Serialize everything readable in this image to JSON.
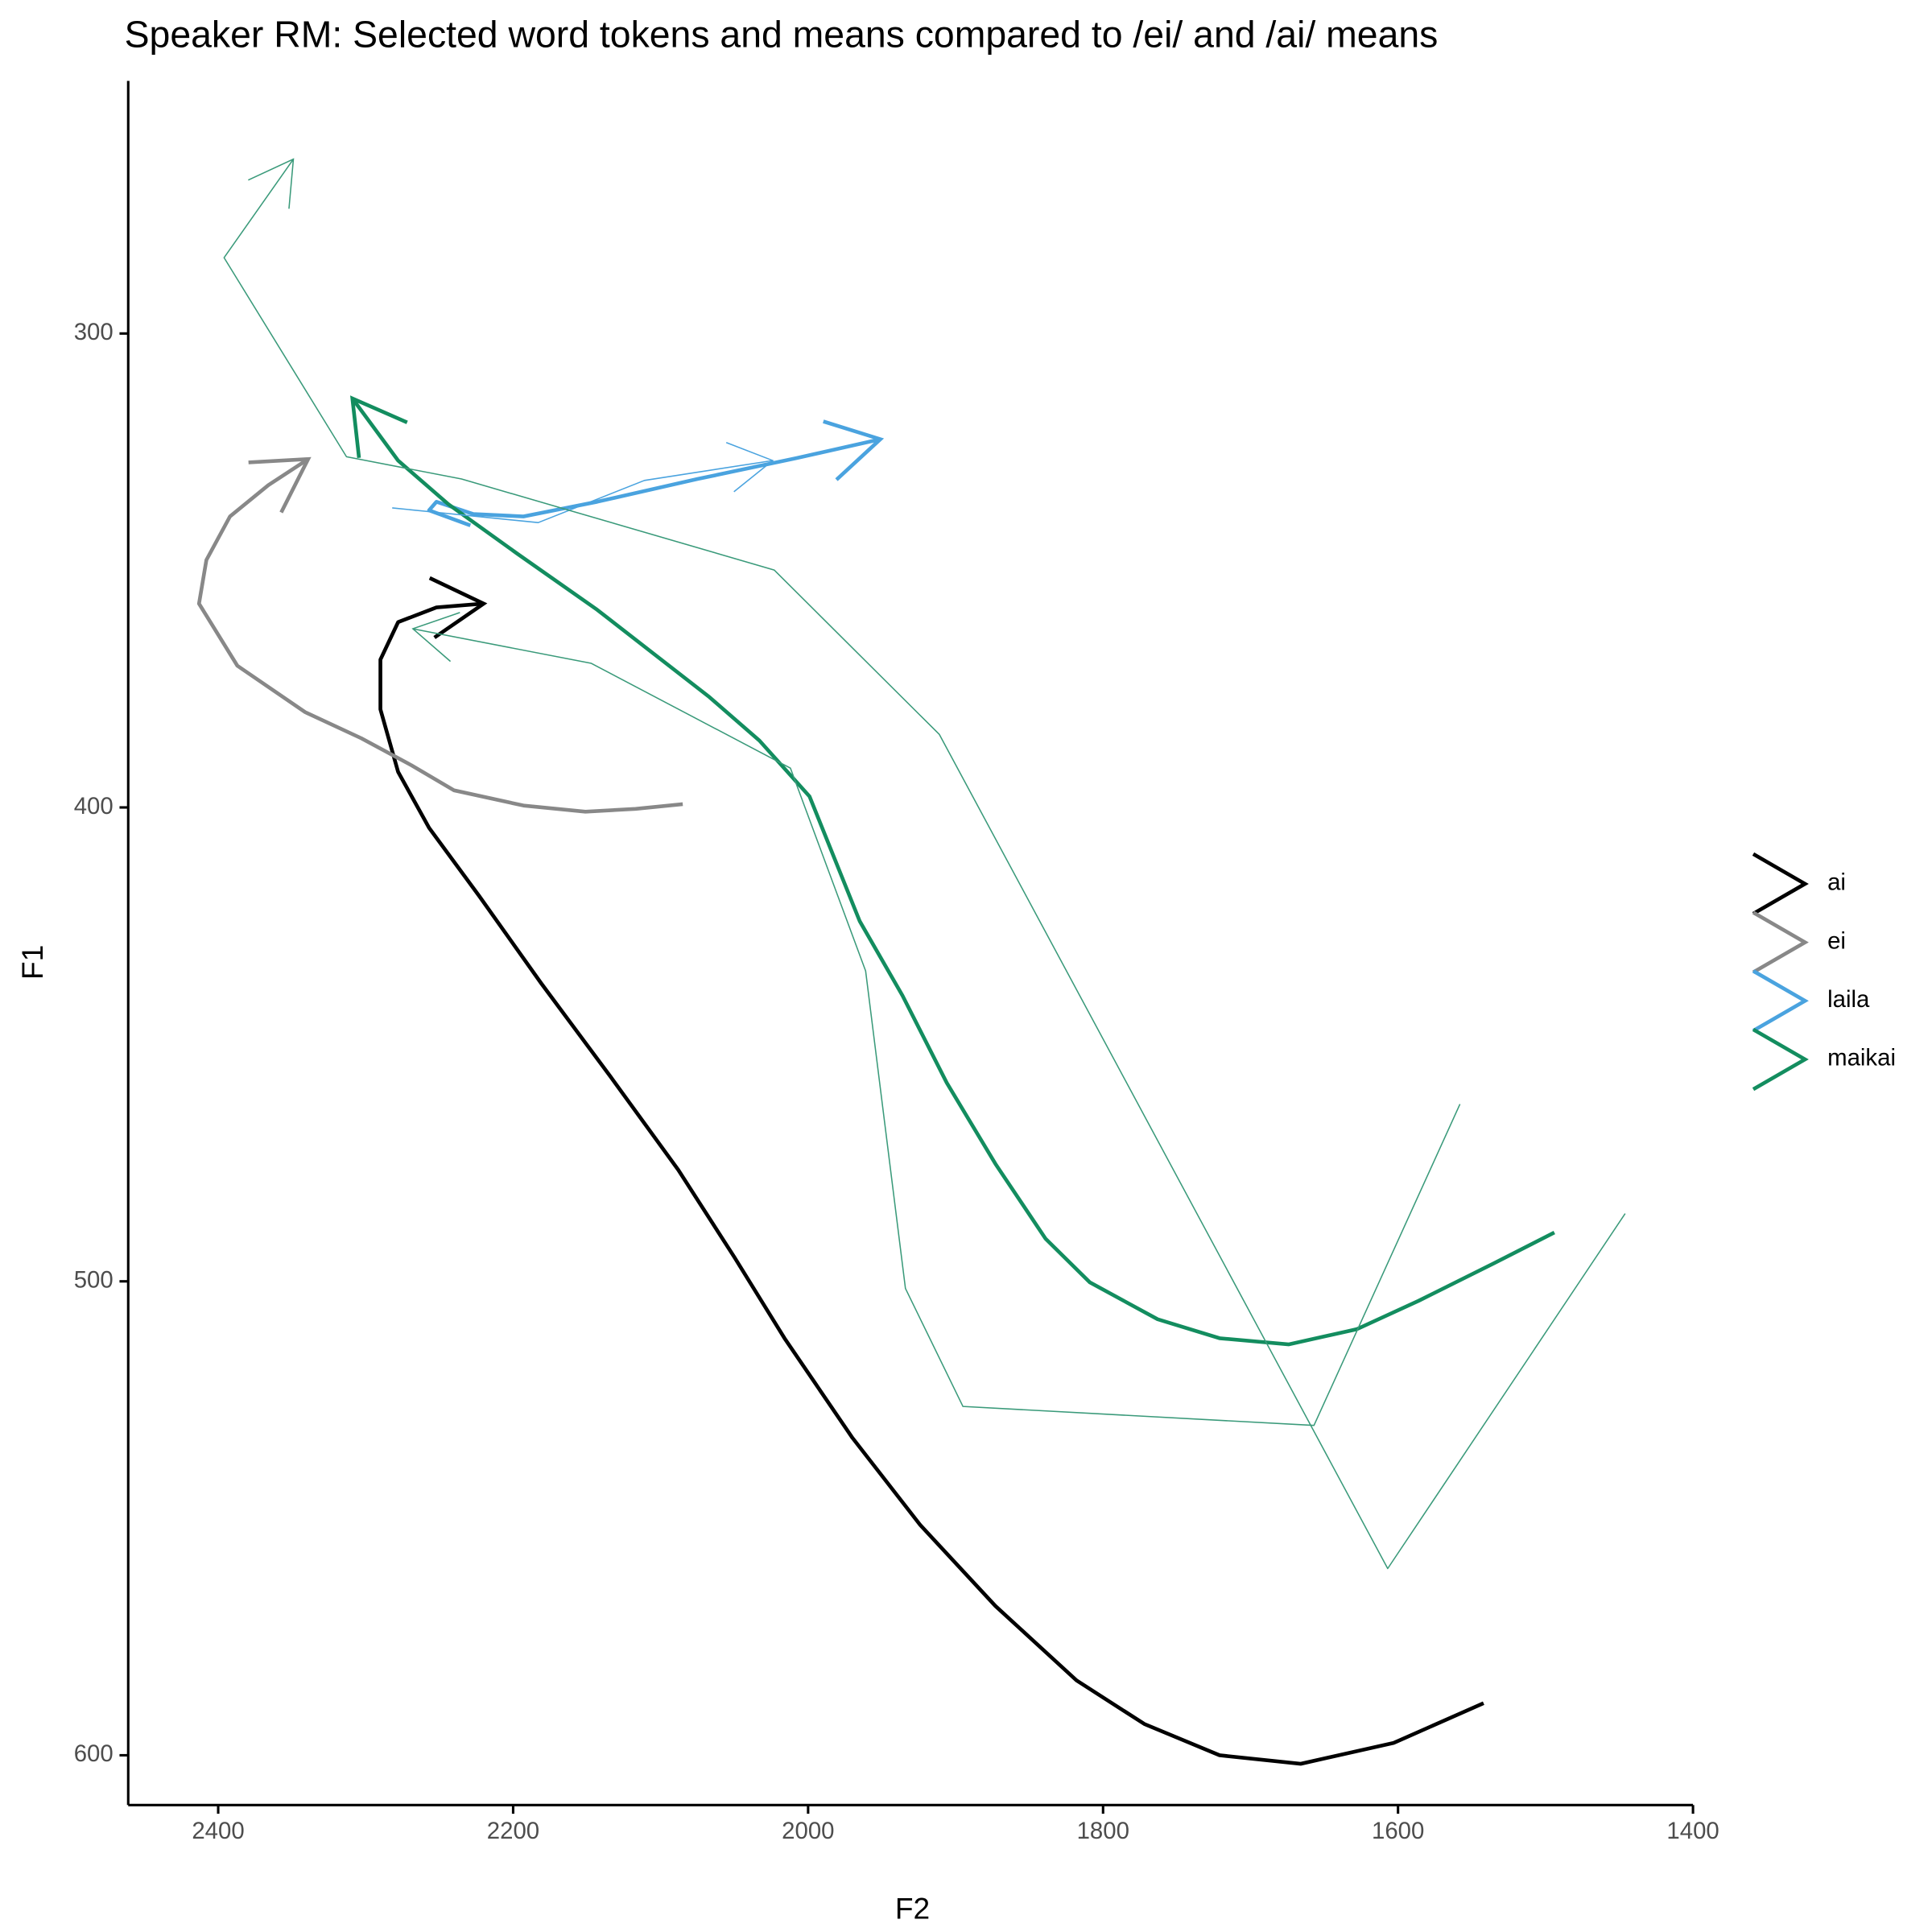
{
  "chart_data": {
    "type": "line",
    "title": "Speaker RM: Selected word tokens and means compared to /ei/ and /ai/ means",
    "x_label": "F2",
    "y_label": "F1",
    "xlim": [
      2461,
      1400
    ],
    "ylim": [
      610.5,
      246.7
    ],
    "xticks": [
      2400,
      2200,
      2000,
      1800,
      1600,
      1400
    ],
    "yticks": [
      300,
      400,
      500,
      600
    ],
    "series": [
      {
        "name": "ai",
        "color": "#000000",
        "linewidth": 3,
        "x": [
          1542,
          1603,
          1666,
          1721,
          1772,
          1818,
          1873,
          1924,
          1970,
          2016,
          2050,
          2088,
          2134,
          2181,
          2223,
          2257,
          2278,
          2290,
          2290,
          2278,
          2252,
          2220
        ],
        "values": [
          589,
          597.4,
          601.8,
          600,
          593.4,
          584.2,
          568.5,
          551.4,
          533,
          512,
          494.9,
          476.5,
          456.8,
          437.1,
          418.7,
          404.3,
          392.5,
          379.3,
          368.8,
          360.9,
          357.8,
          357
        ]
      },
      {
        "name": "ei",
        "color": "#888888",
        "linewidth": 3,
        "x": [
          2085,
          2117,
          2151,
          2193,
          2240,
          2269,
          2303,
          2341,
          2387,
          2413,
          2408,
          2392,
          2366,
          2339
        ],
        "values": [
          399.3,
          400.3,
          400.9,
          399.6,
          396.4,
          391.1,
          385.4,
          379.9,
          370.1,
          357,
          347.8,
          338.6,
          332,
          326.5
        ]
      },
      {
        "name": "laila",
        "color": "#4aa3df",
        "linewidth": 3,
        "x": [
          2229,
          2257,
          2252,
          2227,
          2193,
          2143,
          2075,
          2008,
          1951
        ],
        "values": [
          340.5,
          337.3,
          335.5,
          338.1,
          338.6,
          335.5,
          330.7,
          326.3,
          322.3
        ]
      },
      {
        "name": "maikai",
        "color": "#138d5f",
        "linewidth": 3,
        "x": [
          1494,
          1535,
          1586,
          1628,
          1674,
          1721,
          1763,
          1809,
          1839,
          1873,
          1906,
          1936,
          1965,
          1999,
          2033,
          2067,
          2105,
          2143,
          2197,
          2244,
          2278,
          2309
        ],
        "values": [
          489.7,
          496.2,
          504.1,
          510.1,
          513.3,
          512,
          508,
          500.2,
          491,
          475.2,
          458.1,
          439.7,
          424,
          397.7,
          385.9,
          376.7,
          367.5,
          358.3,
          346.5,
          336,
          326.8,
          313.7
        ]
      },
      {
        "name": "laila",
        "color": "#4aa3df",
        "linewidth": 1,
        "x": [
          2282,
          2183,
          2111,
          2024
        ],
        "values": [
          336.8,
          339.9,
          331,
          326.8
        ]
      },
      {
        "name": "maikai",
        "color": "#3a9a7a",
        "linewidth": 1,
        "x": [
          1446,
          1607,
          1911,
          2023,
          2235,
          2313,
          2396,
          2349
        ],
        "values": [
          485.7,
          560.6,
          384.6,
          349.9,
          330.7,
          326,
          284,
          263.2
        ]
      },
      {
        "name": "maikai",
        "color": "#3a9a7a",
        "linewidth": 1,
        "x": [
          1558,
          1657,
          1895,
          1934,
          1961,
          2012,
          2147,
          2268
        ],
        "values": [
          462.6,
          530.4,
          526.4,
          501.5,
          434.5,
          391.7,
          369.6,
          362.3
        ]
      }
    ]
  }
}
